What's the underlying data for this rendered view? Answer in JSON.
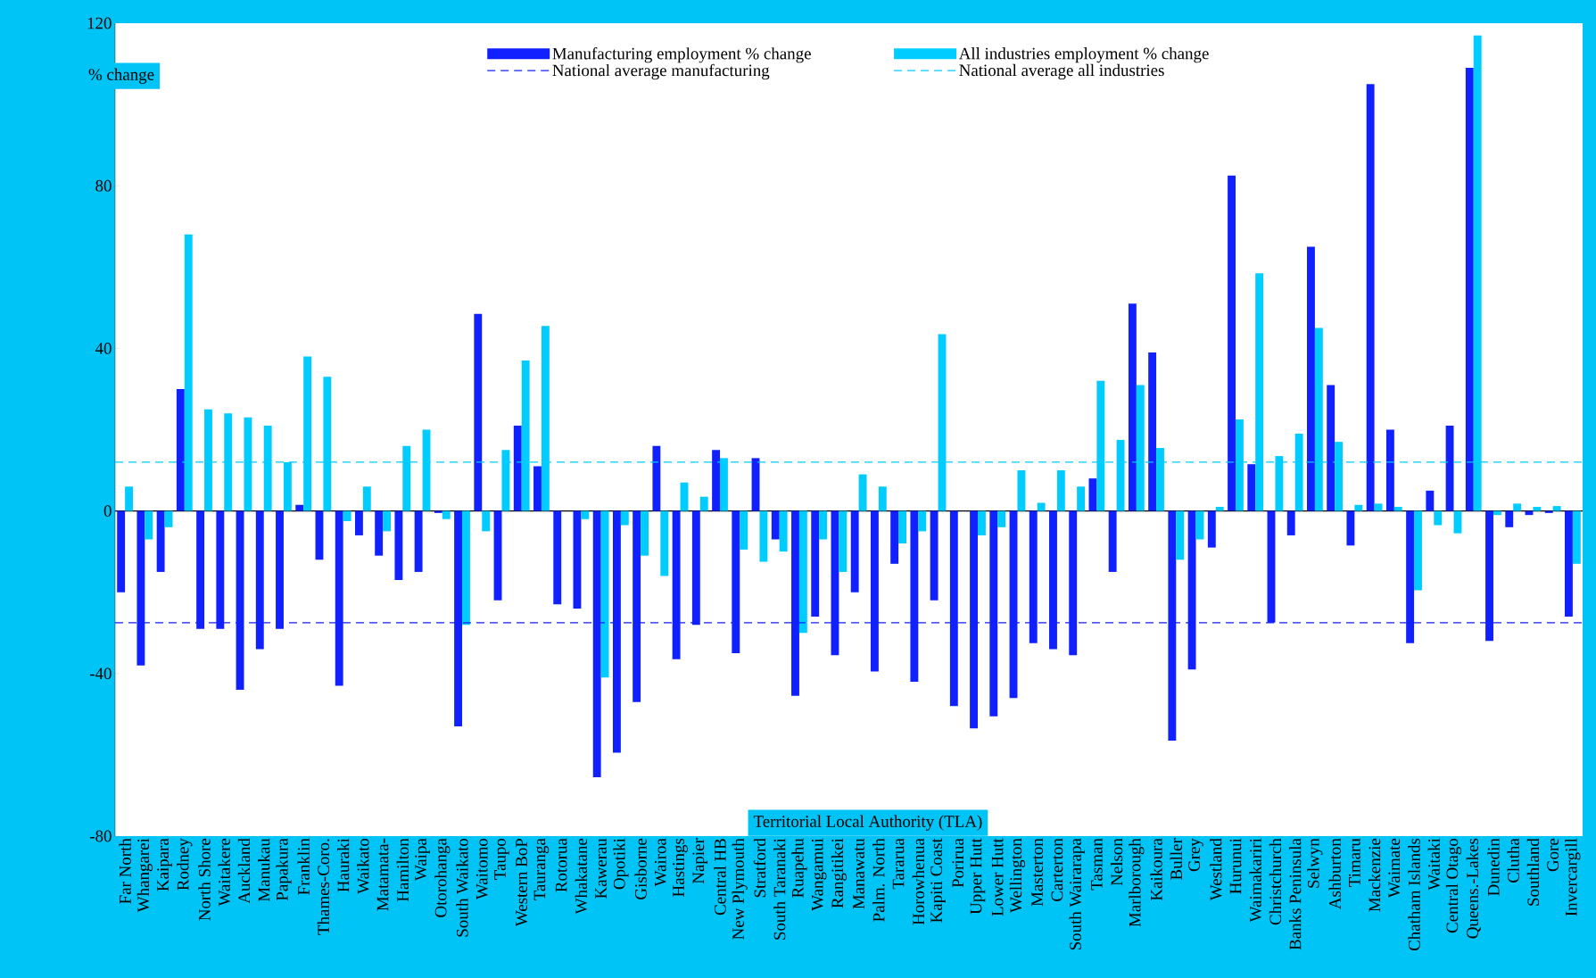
{
  "chart_data": {
    "type": "bar",
    "categories": [
      "Far North",
      "Whangarei",
      "Kaipara",
      "Rodney",
      "North Shore",
      "Waitakere",
      "Auckland",
      "Manukau",
      "Papakura",
      "Franklin",
      "Thames-Coro.",
      "Hauraki",
      "Waikato",
      "Matamata-",
      "Hamilton",
      "Waipa",
      "Otorohanga",
      "South Waikato",
      "Waitomo",
      "Taupo",
      "Western BoP",
      "Tauranga",
      "Rotorua",
      "Whakatane",
      "Kawerau",
      "Opotiki",
      "Gisborne",
      "Wairoa",
      "Hastings",
      "Napier",
      "Central HB",
      "New Plymouth",
      "Stratford",
      "South Taranaki",
      "Ruapehu",
      "Wangamui",
      "Rangitikei",
      "Manawatu",
      "Palm. North",
      "Tararua",
      "Horowhenua",
      "Kapiti Coast",
      "Porirua",
      "Upper Hutt",
      "Lower Hutt",
      "Wellington",
      "Masterton",
      "Carterton",
      "South Wairarapa",
      "Tasman",
      "Nelson",
      "Marlborough",
      "Kaikoura",
      "Buller",
      "Grey",
      "Westland",
      "Hurunui",
      "Waimakariri",
      "Christchurch",
      "Banks Peninsula",
      "Selwyn",
      "Ashburton",
      "Timaru",
      "Mackenzie",
      "Waimate",
      "Chatham Islands",
      "Waitaki",
      "Central Otago",
      "Queens.-Lakes",
      "Dunedin",
      "Clutha",
      "Southland",
      "Gore",
      "Invercargill"
    ],
    "series": [
      {
        "name": "Manufacturing employment % change",
        "color": "#1020ff",
        "values": [
          -20,
          -38,
          -15,
          30,
          -29,
          -29,
          -44,
          -34,
          -29,
          1.5,
          -12,
          -43,
          -6,
          -11,
          -17,
          -15,
          -0.5,
          -53,
          48.5,
          -22,
          21,
          11,
          -23,
          -24,
          -65.5,
          -59.5,
          -47,
          16,
          -36.5,
          -28,
          15,
          -35,
          13,
          -7,
          -45.5,
          -26,
          -35.5,
          -20,
          -39.5,
          -13,
          -42,
          -22,
          -48,
          -53.5,
          -50.5,
          -46,
          -32.5,
          -34,
          -35.5,
          8,
          -15,
          51,
          39,
          -56.5,
          -39,
          -9,
          82.5,
          11.5,
          -27.5,
          -6,
          65,
          31,
          -8.5,
          105,
          20,
          -32.5,
          5,
          21,
          109,
          -32,
          -4,
          -1,
          -0.5,
          -26
        ]
      },
      {
        "name": "All industries employment % change",
        "color": "#00ccff",
        "values": [
          6,
          -7,
          -4,
          68,
          25,
          24,
          23,
          21,
          12,
          38,
          33,
          -2.5,
          6,
          -5,
          16,
          20,
          -2,
          -28,
          -5,
          15,
          37,
          45.5,
          0,
          -2,
          -41,
          -3.5,
          -11,
          -16,
          7,
          3.5,
          13,
          -9.5,
          -12.5,
          -10,
          -30,
          -7,
          -15,
          9,
          6,
          -8,
          -5,
          43.5,
          0,
          -6,
          -4,
          10,
          2,
          10,
          6,
          32,
          17.5,
          31,
          15.5,
          -12,
          -7,
          1,
          22.5,
          58.5,
          13.5,
          19,
          45,
          17,
          1.5,
          1.8,
          1,
          -19.5,
          -3.5,
          -5.5,
          117,
          -1,
          1.8,
          1,
          1.2,
          -13
        ]
      }
    ],
    "ylabel": "% change",
    "xlabel": "Territorial Local Authority (TLA)",
    "ylim": [
      -80,
      120
    ],
    "yticks": [
      -80,
      -40,
      0,
      40,
      80,
      120
    ],
    "legend": "top",
    "ref_lines": [
      {
        "axis": "y",
        "value": -27.5,
        "label": "National average manufacturing",
        "color": "#1020ff",
        "line_style": "dashed"
      },
      {
        "axis": "y",
        "value": 12,
        "label": "National average all industries",
        "color": "#00ccff",
        "line_style": "dashed"
      }
    ]
  }
}
